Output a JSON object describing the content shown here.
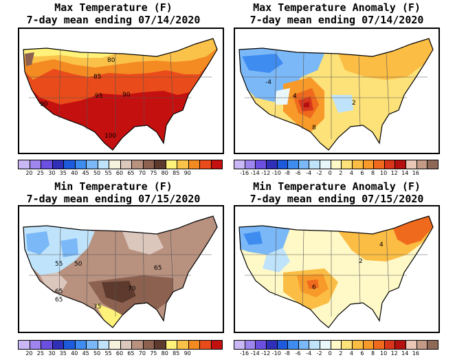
{
  "panels": [
    {
      "id": "max-temp",
      "title_line1": "Max Temperature (F)",
      "title_line2": "7-day mean ending 07/14/2020",
      "contour_labels": [
        "80",
        "85",
        "90",
        "95",
        "90",
        "100"
      ],
      "colorbar": {
        "colors": [
          "#c9b8f5",
          "#9e86ee",
          "#6a4fe0",
          "#2f2fb8",
          "#1e5adc",
          "#3f8cf0",
          "#7bb8f7",
          "#bfe3fa",
          "#f5f2de",
          "#dcc7bd",
          "#b8917f",
          "#8c6150",
          "#5e3a2e",
          "#fff27a",
          "#fbc24a",
          "#f48b22",
          "#e94b1a",
          "#c4100f"
        ],
        "tick_labels": [
          "20",
          "25",
          "30",
          "35",
          "40",
          "45",
          "50",
          "55",
          "60",
          "65",
          "70",
          "75",
          "80",
          "85",
          "90"
        ]
      }
    },
    {
      "id": "max-temp-anomaly",
      "title_line1": "Max Temperature Anomaly (F)",
      "title_line2": "7-day mean ending 07/14/2020",
      "contour_labels": [
        "4",
        "8",
        "2",
        "-4"
      ],
      "colorbar": {
        "colors": [
          "#c9b8f5",
          "#9e86ee",
          "#6a4fe0",
          "#2f2fb8",
          "#1e5adc",
          "#3f8cf0",
          "#7bb8f7",
          "#bfe3fa",
          "#e9f7fb",
          "#fff9c8",
          "#fde27a",
          "#fbbd44",
          "#f79a2a",
          "#ef6a1d",
          "#d8361b",
          "#b3100f",
          "#e9c6b6",
          "#c29a86",
          "#8e6958"
        ],
        "tick_labels": [
          "-16",
          "-14",
          "-12",
          "-10",
          "-8",
          "-6",
          "-4",
          "-2",
          "0",
          "2",
          "4",
          "6",
          "8",
          "10",
          "12",
          "14",
          "16"
        ]
      }
    },
    {
      "id": "min-temp",
      "title_line1": "Min Temperature (F)",
      "title_line2": "7-day mean ending 07/15/2020",
      "contour_labels": [
        "55",
        "50",
        "65",
        "70",
        "65",
        "75",
        "65"
      ],
      "colorbar": {
        "colors": [
          "#c9b8f5",
          "#9e86ee",
          "#6a4fe0",
          "#2f2fb8",
          "#1e5adc",
          "#3f8cf0",
          "#7bb8f7",
          "#bfe3fa",
          "#f5f2de",
          "#dcc7bd",
          "#b8917f",
          "#8c6150",
          "#5e3a2e",
          "#fff27a",
          "#fbc24a",
          "#f48b22",
          "#e94b1a",
          "#c4100f"
        ],
        "tick_labels": [
          "20",
          "25",
          "30",
          "35",
          "40",
          "45",
          "50",
          "55",
          "60",
          "65",
          "70",
          "75",
          "80",
          "85",
          "90"
        ]
      }
    },
    {
      "id": "min-temp-anomaly",
      "title_line1": "Min Temperature Anomaly (F)",
      "title_line2": "7-day mean ending 07/15/2020",
      "contour_labels": [
        "2",
        "4",
        "6"
      ],
      "colorbar": {
        "colors": [
          "#c9b8f5",
          "#9e86ee",
          "#6a4fe0",
          "#2f2fb8",
          "#1e5adc",
          "#3f8cf0",
          "#7bb8f7",
          "#bfe3fa",
          "#e9f7fb",
          "#fff9c8",
          "#fde27a",
          "#fbbd44",
          "#f79a2a",
          "#ef6a1d",
          "#d8361b",
          "#b3100f",
          "#e9c6b6",
          "#c29a86",
          "#8e6958"
        ],
        "tick_labels": [
          "-16",
          "-14",
          "-12",
          "-10",
          "-8",
          "-6",
          "-4",
          "-2",
          "0",
          "2",
          "4",
          "6",
          "8",
          "10",
          "12",
          "14",
          "16"
        ]
      }
    }
  ]
}
